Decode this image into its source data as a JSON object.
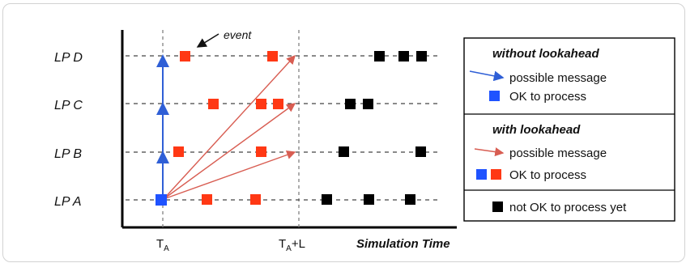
{
  "diagram": {
    "lanes": [
      {
        "id": "lp-d",
        "label": "LP D"
      },
      {
        "id": "lp-c",
        "label": "LP C"
      },
      {
        "id": "lp-b",
        "label": "LP B"
      },
      {
        "id": "lp-a",
        "label": "LP A"
      }
    ],
    "time_ticks": [
      {
        "id": "ta",
        "main": "T",
        "sub": "A",
        "suffix": ""
      },
      {
        "id": "ta-l",
        "main": "T",
        "sub": "A",
        "suffix": "+L"
      }
    ],
    "axis_title": "Simulation Time",
    "event_label": "event"
  },
  "legend": {
    "without_lookahead_title": "without lookahead",
    "without_message": "possible message",
    "without_ok": "OK to process",
    "with_lookahead_title": "with lookahead",
    "with_message": "possible message",
    "with_ok": "OK to process",
    "not_ok": "not OK to process yet"
  },
  "colors": {
    "blue": "#1f53ff",
    "red": "#ff3814",
    "black": "#000000",
    "red_arrow": "#d85d52",
    "blue_arrow": "#2f5fd6"
  }
}
